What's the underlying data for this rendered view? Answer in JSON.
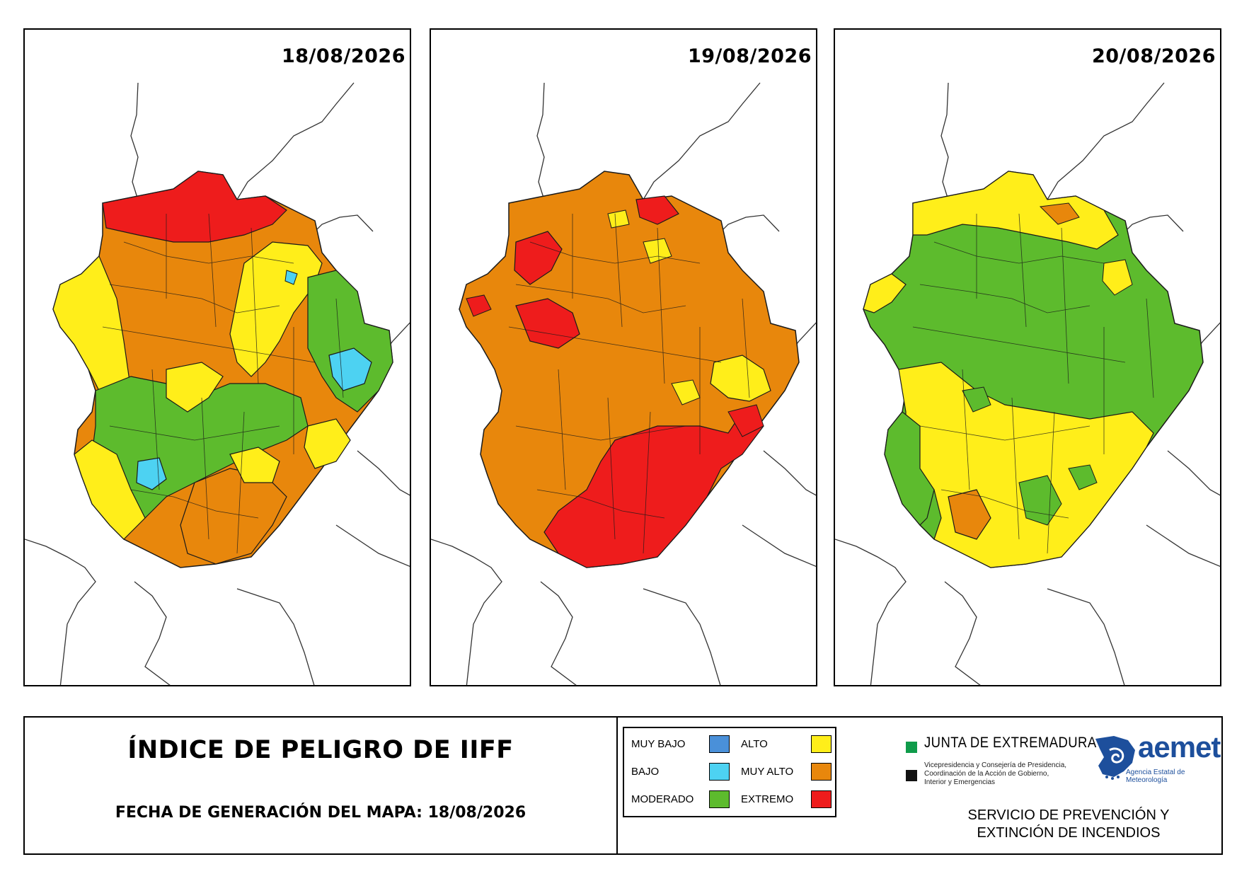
{
  "maps": [
    {
      "date": "18/08/2026",
      "dominant": "#e8870c"
    },
    {
      "date": "19/08/2026",
      "dominant": "#e8870c"
    },
    {
      "date": "20/08/2026",
      "dominant": "#5dbb2d"
    }
  ],
  "footer": {
    "title": "ÍNDICE DE PELIGRO DE IIFF",
    "date_line": "FECHA DE GENERACIÓN DEL MAPA: 18/08/2026"
  },
  "legend": {
    "items": [
      {
        "label": "MUY BAJO",
        "color": "#4a90d9"
      },
      {
        "label": "BAJO",
        "color": "#4dd2f2"
      },
      {
        "label": "MODERADO",
        "color": "#5dbb2d"
      },
      {
        "label": "ALTO",
        "color": "#ffee1a"
      },
      {
        "label": "MUY ALTO",
        "color": "#e8870c"
      },
      {
        "label": "EXTREMO",
        "color": "#ee1c1c"
      }
    ]
  },
  "logos": {
    "junta_name": "JUNTA DE EXTREMADURA",
    "junta_sub_1": "Vicepresidencia y Consejería de Presidencia,",
    "junta_sub_2": "Coordinación de la Acción de Gobierno,",
    "junta_sub_3": "Interior y Emergencias",
    "aemet_word": "aemet",
    "aemet_sub": "Agencia Estatal de Meteorología",
    "junta_green": "#0f9b4a"
  },
  "service": {
    "line1": "SERVICIO DE PREVENCIÓN Y",
    "line2": "EXTINCIÓN DE INCENDIOS"
  }
}
